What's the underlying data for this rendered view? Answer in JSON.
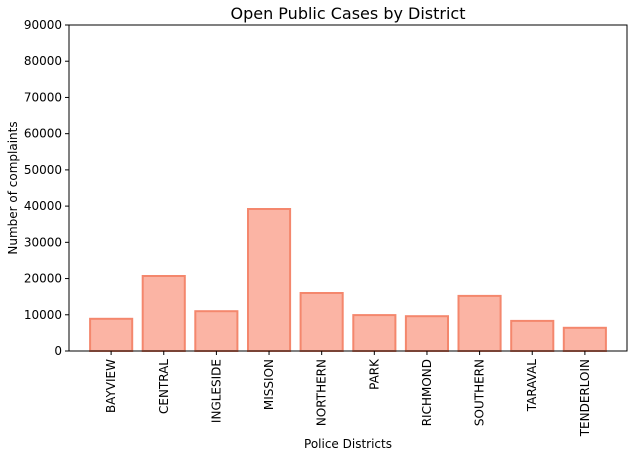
{
  "chart_data": {
    "type": "bar",
    "title": "Open Public Cases by District",
    "xlabel": "Police Districts",
    "ylabel": "Number of complaints",
    "categories": [
      "BAYVIEW",
      "CENTRAL",
      "INGLESIDE",
      "MISSION",
      "NORTHERN",
      "PARK",
      "RICHMOND",
      "SOUTHERN",
      "TARAVAL",
      "TENDERLOIN"
    ],
    "values": [
      8900,
      20700,
      11000,
      39200,
      16000,
      9900,
      9600,
      15200,
      8300,
      6400
    ],
    "ylim": [
      0,
      90000
    ],
    "yticks": [
      0,
      10000,
      20000,
      30000,
      40000,
      50000,
      60000,
      70000,
      80000,
      90000
    ],
    "grid": false,
    "colors": {
      "bar_fill": "#fbb4a4",
      "bar_edge": "#f4876d"
    }
  }
}
